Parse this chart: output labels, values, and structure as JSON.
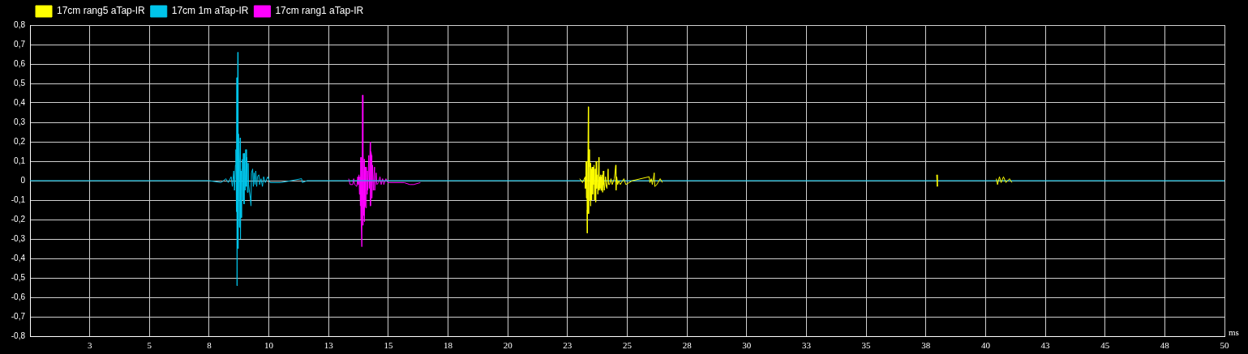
{
  "chart_data": {
    "type": "line",
    "xlabel": "ms",
    "legend": "top left",
    "grid": true,
    "xlim": [
      0,
      50
    ],
    "xticks": [
      {
        "value": 2.5,
        "label": "3"
      },
      5,
      {
        "value": 7.5,
        "label": "8"
      },
      10,
      {
        "value": 12.5,
        "label": "13"
      },
      15,
      {
        "value": 17.5,
        "label": "18"
      },
      20,
      {
        "value": 22.5,
        "label": "23"
      },
      25,
      {
        "value": 27.5,
        "label": "28"
      },
      30,
      {
        "value": 32.5,
        "label": "33"
      },
      35,
      {
        "value": 37.5,
        "label": "38"
      },
      40,
      {
        "value": 42.5,
        "label": "43"
      },
      45,
      {
        "value": 47.5,
        "label": "48"
      },
      50
    ],
    "ylim": [
      -0.8,
      0.8
    ],
    "yticks": [
      {
        "value": -0.8,
        "label": "-0,8"
      },
      {
        "value": -0.7,
        "label": "-0,7"
      },
      {
        "value": -0.6,
        "label": "-0,6"
      },
      {
        "value": -0.5,
        "label": "-0,5"
      },
      {
        "value": -0.4,
        "label": "-0,4"
      },
      {
        "value": -0.3,
        "label": "-0,3"
      },
      {
        "value": -0.2,
        "label": "-0,2"
      },
      {
        "value": -0.1,
        "label": "-0,1"
      },
      0,
      {
        "value": 0.1,
        "label": "0,1"
      },
      {
        "value": 0.2,
        "label": "0,2"
      },
      {
        "value": 0.3,
        "label": "0,3"
      },
      {
        "value": 0.4,
        "label": "0,4"
      },
      {
        "value": 0.5,
        "label": "0,5"
      },
      {
        "value": 0.6,
        "label": "0,6"
      },
      {
        "value": 0.7,
        "label": "0,7"
      },
      {
        "value": 0.8,
        "label": "0,8"
      }
    ],
    "series": [
      {
        "name": "17cm rang5 aTap-IR",
        "color": "#ffff00",
        "x": [
          23.01,
          23.13,
          23.24,
          23.25,
          23.28,
          23.29,
          23.31,
          23.32,
          23.33,
          23.37,
          23.38,
          23.39,
          23.42,
          23.43,
          23.46,
          23.47,
          23.49,
          23.51,
          23.53,
          23.55,
          23.58,
          23.59,
          23.61,
          23.63,
          23.66,
          23.68,
          23.7,
          23.72,
          23.75,
          23.77,
          23.81,
          23.82,
          23.84,
          23.86,
          23.89,
          23.9,
          23.92,
          23.93,
          23.95,
          23.97,
          24,
          24.02,
          24.04,
          24.09,
          24.12,
          24.15,
          24.2,
          24.22,
          24.26,
          24.32,
          24.37,
          24.46,
          24.52,
          24.53,
          24.56,
          24.6,
          24.65,
          24.71,
          24.86,
          24.94,
          25.22,
          25.92,
          25.95,
          26.01,
          26.05,
          26.13,
          26.15,
          26.24,
          26.38,
          26.47,
          30,
          37.95,
          37.98,
          39,
          40.45,
          40.5,
          40.58,
          40.65,
          40.75,
          40.85,
          41,
          41.1
        ],
        "values": [
          0.01,
          -0.01,
          0.02,
          -0.04,
          0.1,
          -0.09,
          0.1,
          -0.15,
          -0.27,
          0.38,
          -0.17,
          0.16,
          0.07,
          -0.1,
          0.09,
          -0.13,
          0.06,
          -0.1,
          0.07,
          -0.07,
          0.07,
          -0.02,
          0.08,
          -0.1,
          0.06,
          -0.11,
          0.1,
          -0.04,
          0.03,
          -0.07,
          0.12,
          -0.05,
          0.02,
          -0.04,
          0.03,
          -0.05,
          0.02,
          -0.05,
          0.03,
          -0.06,
          0.05,
          -0.02,
          -0.05,
          0.02,
          -0.03,
          -0.04,
          0.06,
          -0.02,
          -0.02,
          0.01,
          -0.02,
          0.01,
          0.08,
          -0.05,
          0.02,
          -0.02,
          0,
          -0.02,
          0.01,
          -0.02,
          0,
          0.02,
          -0.01,
          0.01,
          -0.02,
          0.04,
          -0.03,
          -0.02,
          0.01,
          -0.01,
          null,
          0.03,
          -0.03,
          null,
          0.01,
          -0.02,
          0.02,
          -0.01,
          0.02,
          -0.01,
          0.01,
          -0.01
        ]
      },
      {
        "name": "17cm 1m aTap-IR",
        "color": "#00c4ea",
        "x": [
          0,
          5,
          7.5,
          8,
          8.2,
          8.3,
          8.42,
          8.47,
          8.53,
          8.56,
          8.6,
          8.62,
          8.64,
          8.66,
          8.67,
          8.7,
          8.71,
          8.73,
          8.76,
          8.78,
          8.8,
          8.81,
          8.83,
          8.85,
          8.87,
          8.89,
          8.91,
          8.93,
          8.96,
          8.98,
          9.01,
          9.03,
          9.06,
          9.08,
          9.1,
          9.13,
          9.15,
          9.22,
          9.25,
          9.27,
          9.32,
          9.35,
          9.38,
          9.42,
          9.45,
          9.49,
          9.52,
          9.58,
          9.61,
          9.67,
          9.73,
          9.78,
          9.85,
          9.95,
          10.05,
          10.5,
          11.37,
          11.4,
          11.6,
          20,
          30,
          40,
          50
        ],
        "values": [
          0,
          0,
          0,
          -0.01,
          0.01,
          -0.01,
          0.02,
          -0.03,
          0.05,
          -0.05,
          0.08,
          0.16,
          -0.16,
          0.53,
          -0.54,
          0.66,
          -0.35,
          0.24,
          -0.24,
          0.1,
          0.22,
          -0.3,
          0.05,
          -0.19,
          0.06,
          0.11,
          -0.1,
          0.14,
          -0.12,
          0.14,
          -0.05,
          0.16,
          -0.03,
          0.12,
          -0.06,
          0.09,
          -0.02,
          -0.09,
          -0.13,
          0.04,
          0.06,
          -0.03,
          0.04,
          -0.02,
          0.05,
          -0.03,
          0.02,
          0.03,
          -0.02,
          0.01,
          -0.03,
          0.02,
          -0.01,
          0.02,
          -0.01,
          -0.01,
          0.01,
          -0.01,
          0,
          0,
          0,
          0,
          0
        ]
      },
      {
        "name": "17cm rang1 aTap-IR",
        "color": "#ff00ff",
        "x": [
          13.34,
          13.4,
          13.51,
          13.55,
          13.59,
          13.68,
          13.72,
          13.74,
          13.77,
          13.79,
          13.81,
          13.83,
          13.85,
          13.86,
          13.89,
          13.92,
          13.93,
          13.95,
          13.96,
          13.99,
          14,
          14.02,
          14.03,
          14.06,
          14.08,
          14.1,
          14.12,
          14.14,
          14.18,
          14.2,
          14.24,
          14.25,
          14.27,
          14.3,
          14.31,
          14.34,
          14.37,
          14.42,
          14.43,
          14.45,
          14.49,
          14.52,
          14.59,
          14.65,
          14.7,
          14.76,
          14.81,
          14.9,
          14.98,
          15.66,
          15.9,
          16.06,
          16.34
        ],
        "values": [
          0.01,
          -0.02,
          -0.02,
          0.01,
          -0.02,
          -0.03,
          0.02,
          -0.02,
          0.03,
          -0.07,
          0.02,
          -0.13,
          0.12,
          -0.2,
          -0.34,
          0.44,
          -0.23,
          0.18,
          -0.18,
          0.11,
          -0.21,
          0.07,
          -0.13,
          -0.14,
          0.07,
          -0.07,
          0.05,
          -0.05,
          0.13,
          -0.04,
          0.2,
          -0.13,
          0.15,
          0.13,
          -0.09,
          0.08,
          -0.05,
          0.07,
          -0.05,
          -0.05,
          0.04,
          -0.02,
          -0.01,
          0.02,
          -0.02,
          0.01,
          -0.02,
          0.01,
          -0.01,
          -0.01,
          -0.02,
          -0.02,
          -0.01
        ]
      }
    ]
  }
}
